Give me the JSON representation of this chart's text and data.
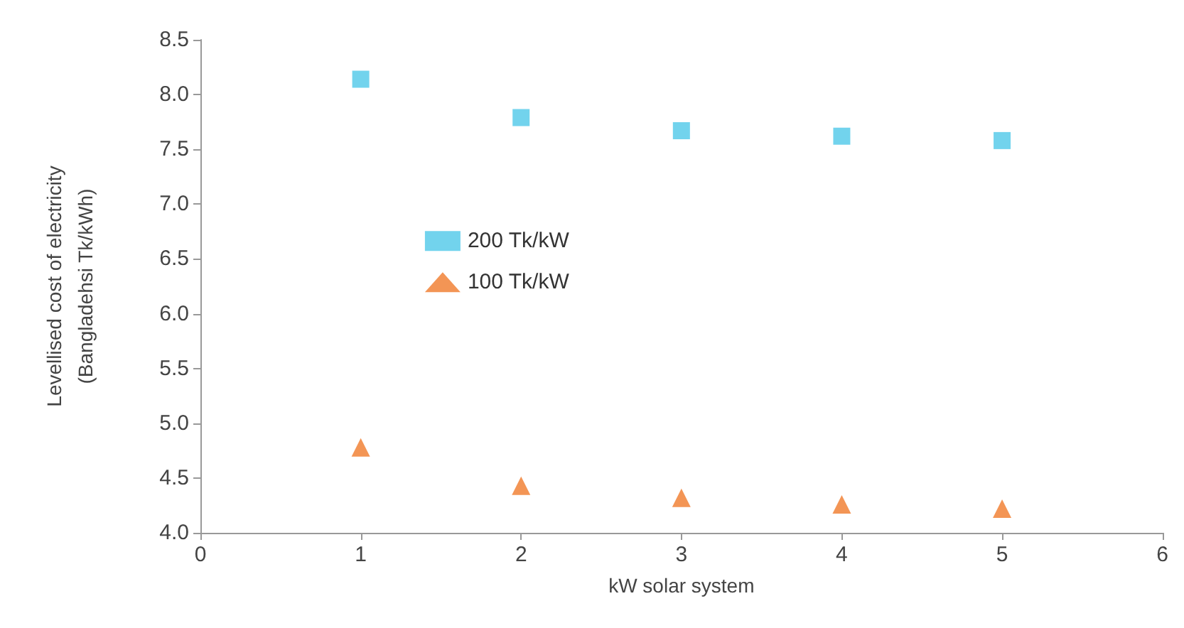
{
  "chart_data": {
    "type": "scatter",
    "xlabel": "kW solar system",
    "ylabel": "Levellised cost of electricity\n(Bangladehsi Tk/kWh)",
    "x": [
      1,
      2,
      3,
      4,
      5
    ],
    "series": [
      {
        "name": "200 Tk/kW",
        "color": "#4fc8e8",
        "marker": "square",
        "values": [
          8.14,
          7.79,
          7.67,
          7.62,
          7.58
        ]
      },
      {
        "name": "100 Tk/kW",
        "color": "#f07a2a",
        "marker": "triangle",
        "values": [
          4.78,
          4.43,
          4.32,
          4.26,
          4.22
        ]
      }
    ],
    "xlim": [
      0,
      6
    ],
    "xticks": [
      0,
      1,
      2,
      3,
      4,
      5,
      6
    ],
    "ylim": [
      4,
      8.5
    ],
    "yticks": [
      {
        "value": 4,
        "label": "4.0"
      },
      4.5,
      {
        "value": 5,
        "label": "5.0"
      },
      5.5,
      {
        "value": 6,
        "label": "6.0"
      },
      6.5,
      {
        "value": 7,
        "label": "7.0"
      },
      7.5,
      {
        "value": 8,
        "label": "8.0"
      },
      8.5
    ],
    "grid": false,
    "legend": "center"
  }
}
